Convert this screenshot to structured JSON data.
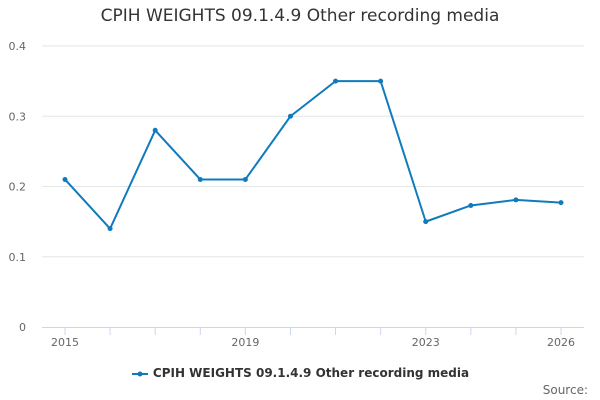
{
  "chart_data": {
    "type": "line",
    "title": "CPIH WEIGHTS 09.1.4.9 Other recording media",
    "xlabel": "",
    "ylabel": "",
    "x": [
      2015,
      2016,
      2017,
      2018,
      2019,
      2020,
      2021,
      2022,
      2023,
      2024,
      2025,
      2026
    ],
    "x_tick_labels": [
      "2015",
      "2019",
      "2023",
      "2026"
    ],
    "y_tick_labels": [
      "0",
      "0.1",
      "0.2",
      "0.3",
      "0.4"
    ],
    "ylim": [
      0,
      0.4
    ],
    "grid": true,
    "legend_position": "bottom",
    "series": [
      {
        "name": "CPIH WEIGHTS 09.1.4.9 Other recording media",
        "color": "#0f7bbd",
        "values": [
          0.21,
          0.14,
          0.28,
          0.21,
          0.21,
          0.3,
          0.35,
          0.35,
          0.15,
          0.173,
          0.181,
          0.177
        ]
      }
    ]
  },
  "credits": "Source:"
}
